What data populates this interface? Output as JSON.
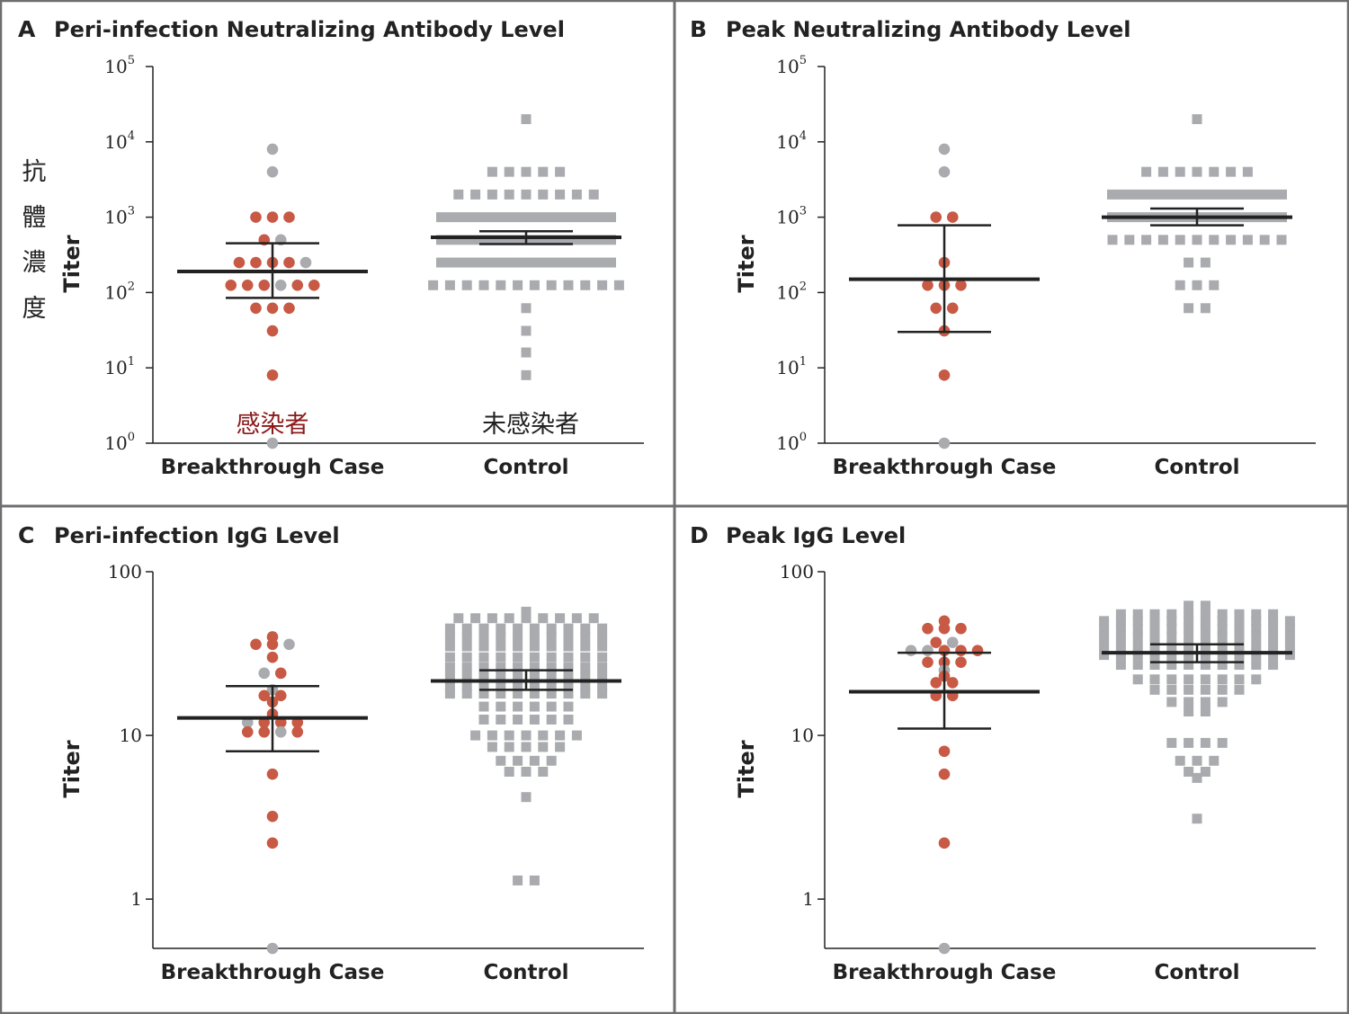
{
  "colors": {
    "infected": "#c85a45",
    "uninfected_point": "#a9abae",
    "frame": "#6d6e70",
    "axis": "#222222",
    "zh_infected": "#8b1a1a"
  },
  "annotations": {
    "y_axis_zh": "抗體濃度",
    "infected_zh": "感染者",
    "uninfected_zh": "未感染者"
  },
  "chart_data": [
    {
      "id": "A",
      "letter": "A",
      "title": "Peri-infection Neutralizing Antibody Level",
      "type": "scatter",
      "scale": "log",
      "ylim": [
        1,
        100000
      ],
      "ylabel": "Titer",
      "yticks": [
        {
          "base": "10",
          "exp": "0"
        },
        {
          "base": "10",
          "exp": "1"
        },
        {
          "base": "10",
          "exp": "2"
        },
        {
          "base": "10",
          "exp": "3"
        },
        {
          "base": "10",
          "exp": "4"
        },
        {
          "base": "10",
          "exp": "5"
        }
      ],
      "categories": [
        "Breakthrough Case",
        "Control"
      ],
      "case_points": [
        {
          "v": 8000,
          "n": 1,
          "g": true
        },
        {
          "v": 4000,
          "n": 1,
          "g": true
        },
        {
          "v": 1000,
          "n": 3,
          "g": false
        },
        {
          "v": 500,
          "n": 1,
          "g": false
        },
        {
          "v": 500,
          "n": 1,
          "g": true
        },
        {
          "v": 250,
          "n": 4,
          "g": false
        },
        {
          "v": 250,
          "n": 1,
          "g": true
        },
        {
          "v": 125,
          "n": 3,
          "g": false
        },
        {
          "v": 125,
          "n": 1,
          "g": true
        },
        {
          "v": 125,
          "n": 2,
          "g": false
        },
        {
          "v": 62,
          "n": 3,
          "g": false
        },
        {
          "v": 31,
          "n": 1,
          "g": false
        },
        {
          "v": 8,
          "n": 1,
          "g": false
        },
        {
          "v": 1,
          "n": 1,
          "g": true
        }
      ],
      "case_summary": {
        "mean": 190,
        "ci": [
          85,
          450
        ]
      },
      "control_points": [
        {
          "v": 20000,
          "n": 1
        },
        {
          "v": 4000,
          "n": 5
        },
        {
          "v": 2000,
          "n": 9
        },
        {
          "v": 1000,
          "n": 40
        },
        {
          "v": 500,
          "n": 40
        },
        {
          "v": 250,
          "n": 40
        },
        {
          "v": 125,
          "n": 12
        },
        {
          "v": 62,
          "n": 1
        },
        {
          "v": 31,
          "n": 1
        },
        {
          "v": 16,
          "n": 1
        },
        {
          "v": 8,
          "n": 1
        }
      ],
      "control_summary": {
        "mean": 540,
        "ci": [
          440,
          650
        ]
      }
    },
    {
      "id": "B",
      "letter": "B",
      "title": "Peak Neutralizing Antibody Level",
      "type": "scatter",
      "scale": "log",
      "ylim": [
        1,
        100000
      ],
      "ylabel": "Titer",
      "yticks": [
        {
          "base": "10",
          "exp": "0"
        },
        {
          "base": "10",
          "exp": "1"
        },
        {
          "base": "10",
          "exp": "2"
        },
        {
          "base": "10",
          "exp": "3"
        },
        {
          "base": "10",
          "exp": "4"
        },
        {
          "base": "10",
          "exp": "5"
        }
      ],
      "categories": [
        "Breakthrough Case",
        "Control"
      ],
      "case_points": [
        {
          "v": 8000,
          "n": 1,
          "g": true
        },
        {
          "v": 4000,
          "n": 1,
          "g": true
        },
        {
          "v": 1000,
          "n": 2,
          "g": false
        },
        {
          "v": 250,
          "n": 1,
          "g": false
        },
        {
          "v": 125,
          "n": 3,
          "g": false
        },
        {
          "v": 62,
          "n": 2,
          "g": false
        },
        {
          "v": 31,
          "n": 1,
          "g": false
        },
        {
          "v": 8,
          "n": 1,
          "g": false
        },
        {
          "v": 1,
          "n": 1,
          "g": true
        }
      ],
      "case_summary": {
        "mean": 150,
        "ci": [
          30,
          780
        ]
      },
      "control_points": [
        {
          "v": 20000,
          "n": 1
        },
        {
          "v": 4000,
          "n": 7
        },
        {
          "v": 2000,
          "n": 40
        },
        {
          "v": 1000,
          "n": 40
        },
        {
          "v": 500,
          "n": 11
        },
        {
          "v": 250,
          "n": 2
        },
        {
          "v": 125,
          "n": 3
        },
        {
          "v": 62,
          "n": 2
        }
      ],
      "control_summary": {
        "mean": 1000,
        "ci": [
          780,
          1300
        ]
      }
    },
    {
      "id": "C",
      "letter": "C",
      "title": "Peri-infection IgG Level",
      "type": "scatter",
      "scale": "log",
      "ylim": [
        0.5,
        100
      ],
      "ylabel": "Titer",
      "yticks": [
        {
          "base": "1",
          "exp": ""
        },
        {
          "base": "10",
          "exp": ""
        },
        {
          "base": "100",
          "exp": ""
        }
      ],
      "categories": [
        "Breakthrough Case",
        "Control"
      ],
      "case_points": [
        {
          "v": 40,
          "n": 1,
          "g": false
        },
        {
          "v": 36,
          "n": 2,
          "g": false
        },
        {
          "v": 37,
          "n": 1,
          "g": true
        },
        {
          "v": 30,
          "n": 1,
          "g": false
        },
        {
          "v": 24,
          "n": 1,
          "g": true
        },
        {
          "v": 23,
          "n": 1,
          "g": false
        },
        {
          "v": 19,
          "n": 1,
          "g": true
        },
        {
          "v": 17.5,
          "n": 1,
          "g": false
        },
        {
          "v": 18,
          "n": 1,
          "g": false
        },
        {
          "v": 16,
          "n": 1,
          "g": false
        },
        {
          "v": 13.5,
          "n": 1,
          "g": false
        },
        {
          "v": 12,
          "n": 1,
          "g": true
        },
        {
          "v": 11.5,
          "n": 2,
          "g": false
        },
        {
          "v": 12,
          "n": 1,
          "g": false
        },
        {
          "v": 10.5,
          "n": 2,
          "g": false
        },
        {
          "v": 10.5,
          "n": 1,
          "g": true
        },
        {
          "v": 10.6,
          "n": 1,
          "g": false
        },
        {
          "v": 5.8,
          "n": 1,
          "g": false
        },
        {
          "v": 3.2,
          "n": 1,
          "g": false
        },
        {
          "v": 2.2,
          "n": 1,
          "g": false
        },
        {
          "v": 0.5,
          "n": 1,
          "g": true
        }
      ],
      "case_summary": {
        "mean": 12.8,
        "ci": [
          8,
          20
        ]
      },
      "control_points": [
        {
          "v": 57,
          "n": 1
        },
        {
          "v": 52,
          "n": 9
        },
        {
          "v": 45,
          "n": 10
        },
        {
          "v": 40,
          "n": 10
        },
        {
          "v": 35,
          "n": 10
        },
        {
          "v": 30,
          "n": 10
        },
        {
          "v": 26,
          "n": 10
        },
        {
          "v": 23,
          "n": 10
        },
        {
          "v": 20,
          "n": 10
        },
        {
          "v": 18,
          "n": 10
        },
        {
          "v": 15,
          "n": 6
        },
        {
          "v": 12.5,
          "n": 6
        },
        {
          "v": 10,
          "n": 7
        },
        {
          "v": 8.5,
          "n": 5
        },
        {
          "v": 7,
          "n": 4
        },
        {
          "v": 6,
          "n": 3
        },
        {
          "v": 4.2,
          "n": 1
        },
        {
          "v": 1.3,
          "n": 2
        }
      ],
      "control_summary": {
        "mean": 21.5,
        "ci": [
          19,
          25
        ]
      }
    },
    {
      "id": "D",
      "letter": "D",
      "title": "Peak IgG Level",
      "type": "scatter",
      "scale": "log",
      "ylim": [
        0.5,
        100
      ],
      "ylabel": "Titer",
      "yticks": [
        {
          "base": "1",
          "exp": ""
        },
        {
          "base": "10",
          "exp": ""
        },
        {
          "base": "100",
          "exp": ""
        }
      ],
      "categories": [
        "Breakthrough Case",
        "Control"
      ],
      "case_points": [
        {
          "v": 50,
          "n": 1,
          "g": false
        },
        {
          "v": 45,
          "n": 3,
          "g": false
        },
        {
          "v": 37,
          "n": 1,
          "g": false
        },
        {
          "v": 37,
          "n": 1,
          "g": true
        },
        {
          "v": 33,
          "n": 2,
          "g": true
        },
        {
          "v": 32,
          "n": 3,
          "g": false
        },
        {
          "v": 28,
          "n": 3,
          "g": false
        },
        {
          "v": 25,
          "n": 1,
          "g": true
        },
        {
          "v": 23,
          "n": 1,
          "g": false
        },
        {
          "v": 21,
          "n": 2,
          "g": false
        },
        {
          "v": 17.5,
          "n": 1,
          "g": false
        },
        {
          "v": 18,
          "n": 1,
          "g": false
        },
        {
          "v": 8,
          "n": 1,
          "g": false
        },
        {
          "v": 5.8,
          "n": 1,
          "g": false
        },
        {
          "v": 2.2,
          "n": 1,
          "g": false
        },
        {
          "v": 0.5,
          "n": 1,
          "g": true
        }
      ],
      "case_summary": {
        "mean": 18.5,
        "ci": [
          11,
          32
        ]
      },
      "control_points": [
        {
          "v": 62,
          "n": 2
        },
        {
          "v": 55,
          "n": 10
        },
        {
          "v": 50,
          "n": 12
        },
        {
          "v": 45,
          "n": 12
        },
        {
          "v": 40,
          "n": 12
        },
        {
          "v": 35,
          "n": 12
        },
        {
          "v": 31,
          "n": 12
        },
        {
          "v": 27,
          "n": 10
        },
        {
          "v": 22,
          "n": 8
        },
        {
          "v": 19,
          "n": 6
        },
        {
          "v": 16,
          "n": 4
        },
        {
          "v": 14,
          "n": 2
        },
        {
          "v": 9,
          "n": 4
        },
        {
          "v": 7,
          "n": 3
        },
        {
          "v": 6,
          "n": 2
        },
        {
          "v": 5.5,
          "n": 1
        },
        {
          "v": 3.1,
          "n": 1
        }
      ],
      "control_summary": {
        "mean": 32,
        "ci": [
          28,
          36
        ]
      }
    }
  ]
}
